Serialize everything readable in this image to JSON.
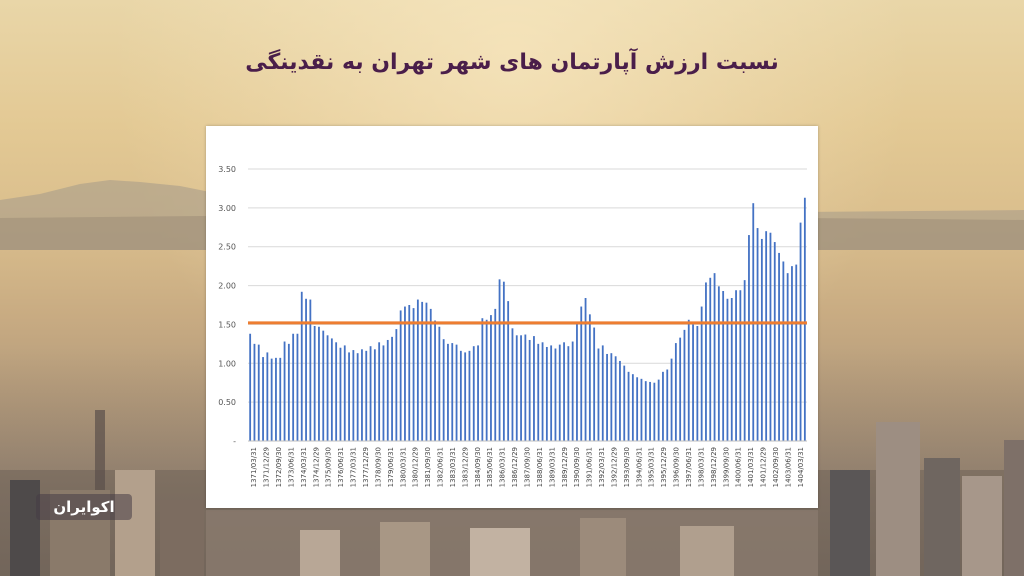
{
  "title": "نسبت ارزش آپارتمان های شهر تهران به نقدینگی",
  "logo_text": "اکوایران",
  "colors": {
    "bar": "#4472c4",
    "reference_line": "#ed7d31",
    "title": "#4a1e4a"
  },
  "chart_data": {
    "type": "bar",
    "y_tick_labels": [
      "-",
      "0.50",
      "1.00",
      "1.50",
      "2.00",
      "2.50",
      "3.00",
      "3.50"
    ],
    "ylim": [
      0,
      3.5
    ],
    "reference_line": 1.52,
    "grid": true,
    "legend": "none",
    "x_tick_labels": [
      "1371/03/31",
      "1371/12/29",
      "1372/09/30",
      "1373/06/31",
      "1374/03/31",
      "1374/12/29",
      "1375/09/30",
      "1376/06/31",
      "1377/03/31",
      "1377/12/29",
      "1378/09/30",
      "1379/06/31",
      "1380/03/31",
      "1380/12/29",
      "1381/09/30",
      "1382/06/31",
      "1383/03/31",
      "1383/12/29",
      "1384/09/30",
      "1385/06/31",
      "1386/03/31",
      "1386/12/29",
      "1387/09/30",
      "1388/06/31",
      "1389/03/31",
      "1389/12/29",
      "1390/09/30",
      "1391/06/31",
      "1392/03/31",
      "1392/12/29",
      "1393/09/30",
      "1394/06/31",
      "1395/03/31",
      "1395/12/29",
      "1396/09/30",
      "1397/06/31",
      "1398/03/31",
      "1398/12/29",
      "1399/09/30",
      "1400/06/31",
      "1401/03/31",
      "1401/12/29",
      "1402/09/30",
      "1403/06/31",
      "1404/03/31"
    ],
    "values": [
      1.38,
      1.25,
      1.24,
      1.08,
      1.14,
      1.06,
      1.07,
      1.07,
      1.28,
      1.25,
      1.38,
      1.38,
      1.92,
      1.83,
      1.82,
      1.48,
      1.47,
      1.42,
      1.36,
      1.32,
      1.27,
      1.2,
      1.23,
      1.14,
      1.17,
      1.13,
      1.18,
      1.16,
      1.22,
      1.18,
      1.27,
      1.23,
      1.3,
      1.34,
      1.44,
      1.68,
      1.73,
      1.75,
      1.71,
      1.82,
      1.79,
      1.78,
      1.7,
      1.55,
      1.47,
      1.31,
      1.25,
      1.26,
      1.24,
      1.16,
      1.14,
      1.16,
      1.22,
      1.23,
      1.58,
      1.56,
      1.62,
      1.7,
      2.08,
      2.05,
      1.8,
      1.45,
      1.36,
      1.36,
      1.37,
      1.3,
      1.35,
      1.25,
      1.27,
      1.21,
      1.23,
      1.19,
      1.24,
      1.27,
      1.22,
      1.28,
      1.53,
      1.73,
      1.84,
      1.63,
      1.46,
      1.19,
      1.23,
      1.12,
      1.13,
      1.09,
      1.03,
      0.97,
      0.89,
      0.86,
      0.82,
      0.8,
      0.77,
      0.76,
      0.75,
      0.79,
      0.89,
      0.92,
      1.06,
      1.26,
      1.33,
      1.43,
      1.56,
      1.5,
      1.48,
      1.73,
      2.04,
      2.1,
      2.16,
      1.99,
      1.93,
      1.83,
      1.84,
      1.94,
      1.94,
      2.07,
      2.65,
      3.06,
      2.74,
      2.6,
      2.7,
      2.68,
      2.56,
      2.42,
      2.31,
      2.16,
      2.25,
      2.27,
      2.81,
      3.13
    ]
  }
}
